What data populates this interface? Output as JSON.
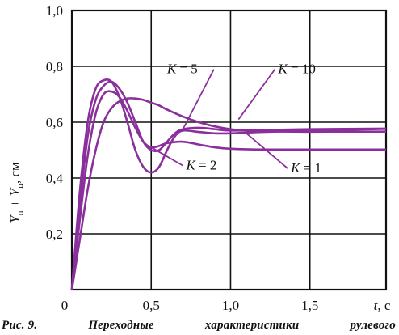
{
  "chart_data": {
    "type": "line",
    "title": "",
    "ylabel": "Y_п + Y_ц, см",
    "ylabel_parts": {
      "a": "Y",
      "a_sub": "п",
      "plus": " + ",
      "b": "Y",
      "b_sub": "ц",
      "unit": ", см"
    },
    "xlabel": "t, с",
    "xlabel_parts": {
      "var": "t",
      "unit": ", с"
    },
    "xlim": [
      0,
      1.98
    ],
    "ylim": [
      0,
      1.0
    ],
    "x_ticks": [
      {
        "v": 0.5,
        "label": "0,5"
      },
      {
        "v": 1.0,
        "label": "1,0"
      },
      {
        "v": 1.5,
        "label": "1,5"
      }
    ],
    "x_origin_label": "0",
    "y_ticks": [
      {
        "v": 0.2,
        "label": "0,2"
      },
      {
        "v": 0.4,
        "label": "0,4"
      },
      {
        "v": 0.6,
        "label": "0,6"
      },
      {
        "v": 0.8,
        "label": "0,8"
      },
      {
        "v": 1.0,
        "label": "1,0"
      }
    ],
    "grid": true,
    "line_color": "#8a2f9c",
    "series": [
      {
        "name": "K = 1",
        "points": [
          [
            0,
            0
          ],
          [
            0.05,
            0.18
          ],
          [
            0.1,
            0.36
          ],
          [
            0.15,
            0.5
          ],
          [
            0.2,
            0.6
          ],
          [
            0.25,
            0.65
          ],
          [
            0.3,
            0.675
          ],
          [
            0.35,
            0.685
          ],
          [
            0.4,
            0.685
          ],
          [
            0.45,
            0.68
          ],
          [
            0.5,
            0.67
          ],
          [
            0.55,
            0.66
          ],
          [
            0.6,
            0.645
          ],
          [
            0.7,
            0.62
          ],
          [
            0.8,
            0.6
          ],
          [
            0.9,
            0.585
          ],
          [
            1.0,
            0.575
          ],
          [
            1.1,
            0.57
          ],
          [
            1.2,
            0.568
          ],
          [
            1.4,
            0.566
          ],
          [
            1.6,
            0.566
          ],
          [
            1.98,
            0.566
          ]
        ]
      },
      {
        "name": "K = 2",
        "points": [
          [
            0,
            0
          ],
          [
            0.05,
            0.25
          ],
          [
            0.1,
            0.48
          ],
          [
            0.15,
            0.63
          ],
          [
            0.2,
            0.7
          ],
          [
            0.25,
            0.71
          ],
          [
            0.3,
            0.69
          ],
          [
            0.35,
            0.64
          ],
          [
            0.4,
            0.58
          ],
          [
            0.45,
            0.53
          ],
          [
            0.5,
            0.51
          ],
          [
            0.55,
            0.515
          ],
          [
            0.6,
            0.525
          ],
          [
            0.7,
            0.53
          ],
          [
            0.8,
            0.52
          ],
          [
            0.9,
            0.51
          ],
          [
            1.0,
            0.505
          ],
          [
            1.2,
            0.502
          ],
          [
            1.5,
            0.502
          ],
          [
            1.98,
            0.502
          ]
        ]
      },
      {
        "name": "K = 5",
        "points": [
          [
            0,
            0
          ],
          [
            0.05,
            0.3
          ],
          [
            0.1,
            0.55
          ],
          [
            0.15,
            0.68
          ],
          [
            0.2,
            0.73
          ],
          [
            0.25,
            0.745
          ],
          [
            0.3,
            0.72
          ],
          [
            0.35,
            0.67
          ],
          [
            0.4,
            0.6
          ],
          [
            0.45,
            0.53
          ],
          [
            0.5,
            0.5
          ],
          [
            0.55,
            0.5
          ],
          [
            0.6,
            0.53
          ],
          [
            0.65,
            0.56
          ],
          [
            0.7,
            0.575
          ],
          [
            0.8,
            0.58
          ],
          [
            0.9,
            0.575
          ],
          [
            1.0,
            0.57
          ],
          [
            1.2,
            0.572
          ],
          [
            1.5,
            0.575
          ],
          [
            1.98,
            0.577
          ]
        ]
      },
      {
        "name": "K = 10",
        "points": [
          [
            0,
            0
          ],
          [
            0.05,
            0.35
          ],
          [
            0.1,
            0.6
          ],
          [
            0.15,
            0.72
          ],
          [
            0.2,
            0.75
          ],
          [
            0.25,
            0.745
          ],
          [
            0.3,
            0.69
          ],
          [
            0.35,
            0.6
          ],
          [
            0.4,
            0.5
          ],
          [
            0.45,
            0.44
          ],
          [
            0.5,
            0.42
          ],
          [
            0.55,
            0.44
          ],
          [
            0.6,
            0.5
          ],
          [
            0.65,
            0.55
          ],
          [
            0.7,
            0.57
          ],
          [
            0.8,
            0.565
          ],
          [
            0.9,
            0.56
          ],
          [
            1.0,
            0.56
          ],
          [
            1.2,
            0.565
          ],
          [
            1.5,
            0.57
          ],
          [
            1.98,
            0.576
          ]
        ]
      }
    ],
    "annotations": [
      {
        "text_var": "K",
        "text_num": " = 5",
        "at": [
          0.6,
          0.775
        ],
        "tip": [
          0.7,
          0.575
        ]
      },
      {
        "text_var": "K",
        "text_num": " = 10",
        "at": [
          1.3,
          0.775
        ],
        "tip": [
          1.05,
          0.61
        ]
      },
      {
        "text_var": "K",
        "text_num": " = 2",
        "at": [
          0.72,
          0.43
        ],
        "tip": [
          0.5,
          0.51
        ]
      },
      {
        "text_var": "K",
        "text_num": " = 1",
        "at": [
          1.38,
          0.42
        ],
        "tip": [
          1.1,
          0.56
        ]
      }
    ]
  },
  "caption": {
    "fig": "Рис. 9.",
    "words": [
      "Переходные",
      "характеристики",
      "рулевого"
    ]
  }
}
